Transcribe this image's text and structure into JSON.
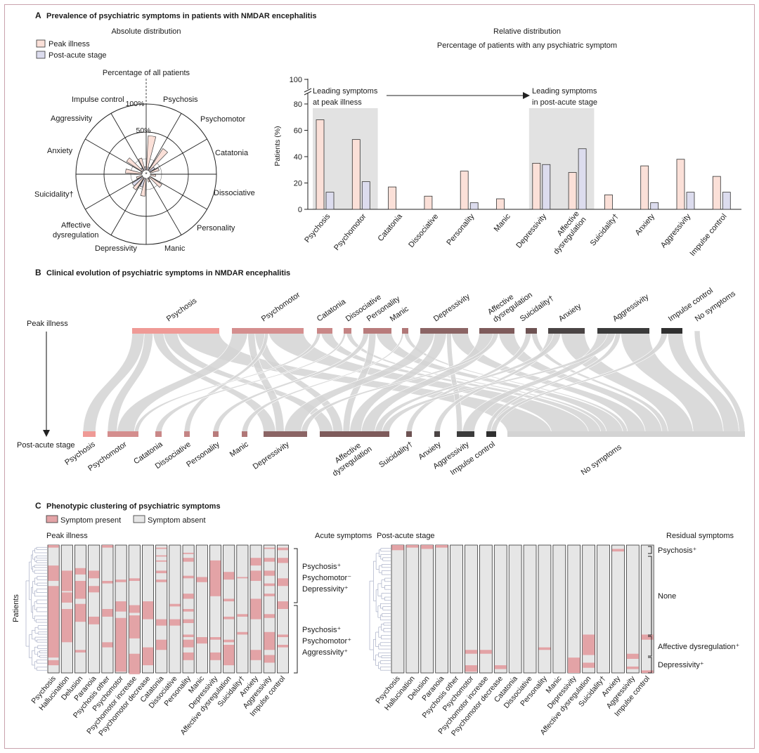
{
  "colors": {
    "peak": "#fbe0d8",
    "post": "#dcdcee",
    "shade": "#e2e2e2",
    "flow": "#d3d3d3",
    "present": "#e3a3a6",
    "absent": "#e6e6e6",
    "frame": "#c9a2ad"
  },
  "panelA": {
    "letter": "A",
    "title": "Prevalence of psychiatric symptoms in patients with NMDAR encephalitis",
    "absolute_title": "Absolute distribution",
    "relative_title": "Relative distribution",
    "relative_subtitle": "Percentage of patients with any psychiatric symptom",
    "legend_peak": "Peak illness",
    "legend_post": "Post-acute stage",
    "polar_caption": "Percentage of all patients",
    "ring_100": "100%",
    "ring_50": "50%",
    "polar_labels": [
      "Psychosis",
      "Psychomotor",
      "Catatonia",
      "Dissociative",
      "Personality",
      "Manic",
      "Depressivity",
      "Affective dysregulation",
      "Suicidality†",
      "Anxiety",
      "Aggressivity",
      "Impulse control"
    ],
    "leading_peak_1": "Leading symptoms",
    "leading_peak_2": "at peak illness",
    "leading_post_1": "Leading symptoms",
    "leading_post_2": "in post-acute stage"
  },
  "chart_data": [
    {
      "type": "bar",
      "categories": [
        "Psychosis",
        "Psychomotor",
        "Catatonia",
        "Dissociative",
        "Personality",
        "Manic",
        "Depressivity",
        "Affective dysregulation",
        "Suicidality†",
        "Anxiety",
        "Aggressivity",
        "Impulse control"
      ],
      "series": [
        {
          "name": "Peak illness",
          "values": [
            68,
            53,
            17,
            10,
            29,
            8,
            35,
            28,
            11,
            33,
            38,
            25
          ]
        },
        {
          "name": "Post-acute stage",
          "values": [
            13,
            21,
            0,
            0,
            5,
            0,
            34,
            46,
            0,
            5,
            13,
            13
          ]
        }
      ],
      "ylabel": "Patients (%)",
      "yticks": [
        0,
        20,
        40,
        60,
        80,
        100
      ],
      "ylim": [
        0,
        100
      ]
    },
    {
      "type": "bar",
      "categories": [
        "Psychosis",
        "Psychomotor",
        "Catatonia",
        "Dissociative",
        "Personality",
        "Manic",
        "Depressivity",
        "Affective dysregulation",
        "Suicidality†",
        "Anxiety",
        "Aggressivity",
        "Impulse control"
      ],
      "series": [
        {
          "name": "Peak illness",
          "values": [
            52,
            40,
            14,
            8,
            22,
            6,
            27,
            22,
            9,
            25,
            29,
            19
          ]
        },
        {
          "name": "Post-acute stage",
          "values": [
            5,
            9,
            0,
            0,
            2,
            0,
            14,
            19,
            0,
            2,
            5,
            5
          ]
        }
      ],
      "ylim": [
        0,
        100
      ]
    }
  ],
  "panelB": {
    "letter": "B",
    "title": "Clinical evolution of psychiatric symptoms in NMDAR encephalitis",
    "peak_label": "Peak illness",
    "post_label": "Post-acute stage",
    "top_nodes": [
      "Psychosis",
      "Psychomotor",
      "Catatonia",
      "Dissociative",
      "Personality",
      "Manic",
      "Depressivity",
      "Affective dysregulation",
      "Suicidality†",
      "Anxiety",
      "Aggressivity",
      "Impulse control",
      "No symptoms"
    ],
    "bottom_nodes": [
      "Psychosis",
      "Psychomotor",
      "Catatonia",
      "Dissociative",
      "Personality",
      "Manic",
      "Depressivity",
      "Affective dysregulation",
      "Suicidality†",
      "Anxiety",
      "Aggressivity",
      "Impulse control",
      "No symptoms"
    ]
  },
  "panelC": {
    "letter": "C",
    "title": "Phenotypic clustering of psychiatric symptoms",
    "legend_present": "Symptom present",
    "legend_absent": "Symptom absent",
    "left_title": "Peak illness",
    "left_right_title": "Acute symptoms",
    "right_title": "Post-acute stage",
    "right_right_title": "Residual symptoms",
    "y_label": "Patients",
    "columns": [
      "Psychosis",
      "Hallucination",
      "Delusion",
      "Paranoia",
      "Psychosis other",
      "Psychomotor",
      "Psychomotor increase",
      "Psychomotor decrease",
      "Catatonia",
      "Dissociative",
      "Personality",
      "Manic",
      "Depressivity",
      "Affective dysregulation",
      "Suicidality†",
      "Anxiety",
      "Aggressivity",
      "Impulse control"
    ],
    "acute_cluster_1": [
      "Psychosis⁺",
      "Psychomotor⁻",
      "Depressivity⁺"
    ],
    "acute_cluster_2": [
      "Psychosis⁺",
      "Psychomotor⁺",
      "Aggressivity⁺"
    ],
    "residual_clusters": [
      "Psychosis⁺",
      "None",
      "Affective dysregulation⁺",
      "Depressivity⁺"
    ]
  }
}
